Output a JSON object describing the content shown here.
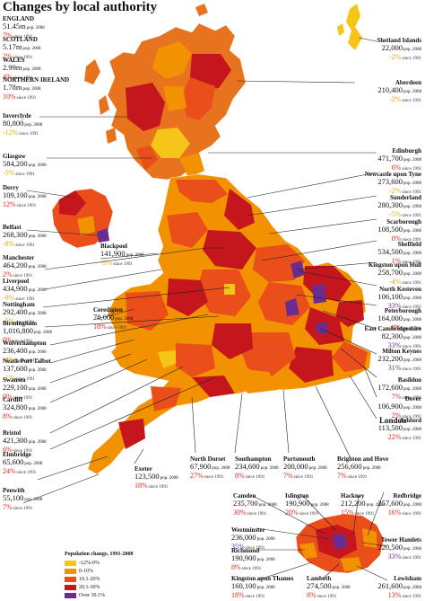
{
  "title": "Changes by local authority",
  "london_title": "London",
  "colors": {
    "decline": "#f5c518",
    "g0": "#f39200",
    "g1": "#e94e1b",
    "g2": "#c4161c",
    "g3": "#6a2c8e",
    "land_base": "#e8731f",
    "highlight_text": "#e1251b"
  },
  "legend": {
    "title": "Population change, 1991-2008",
    "items": [
      {
        "label": "-12%-0%",
        "color": "#f5c518"
      },
      {
        "label": "0-10%",
        "color": "#f39200"
      },
      {
        "label": "10.1-20%",
        "color": "#e94e1b"
      },
      {
        "label": "20.1-30%",
        "color": "#c4161c"
      },
      {
        "label": "Over 30.1%",
        "color": "#6a2c8e"
      }
    ]
  },
  "units": {
    "pop": "pop. 2008",
    "since": "since 1991"
  },
  "nations": [
    {
      "name": "ENGLAND",
      "pop": "51.45m",
      "change": "7%"
    },
    {
      "name": "SCOTLAND",
      "pop": "5.17m",
      "change": "2%"
    },
    {
      "name": "WALES",
      "pop": "2.99m",
      "change": "4%"
    },
    {
      "name": "NORTHERN IRELAND",
      "pop": "1.78m",
      "change": "10%"
    }
  ],
  "areas": [
    {
      "name": "Inverclyde",
      "pop": "80,800",
      "change": "-12%"
    },
    {
      "name": "Glasgow",
      "pop": "584,200",
      "change": "-5%"
    },
    {
      "name": "Derry",
      "pop": "109,100",
      "change": "12%"
    },
    {
      "name": "Belfast",
      "pop": "268,300",
      "change": "-8%"
    },
    {
      "name": "Manchester",
      "pop": "464,200",
      "change": "2%"
    },
    {
      "name": "Liverpool",
      "pop": "434,900",
      "change": "-9%"
    },
    {
      "name": "Nottingham",
      "pop": "292,400",
      "change": "-5%"
    },
    {
      "name": "Birmingham",
      "pop": "1,016,800",
      "change": "0%"
    },
    {
      "name": "Wolverhampton",
      "pop": "236,400",
      "change": "-4%"
    },
    {
      "name": "Neath Port Talbot",
      "pop": "137,600",
      "change": "-1%"
    },
    {
      "name": "Swansea",
      "pop": "229,100",
      "change": "0%"
    },
    {
      "name": "Cardiff",
      "pop": "324,800",
      "change": "8%"
    },
    {
      "name": "Bristol",
      "pop": "421,300",
      "change": "6%"
    },
    {
      "name": "Blackpool",
      "pop": "141,900",
      "change": "-5%"
    },
    {
      "name": "Ceredigion",
      "pop": "78,000",
      "change": "18%"
    },
    {
      "name": "Shetland Islands",
      "pop": "22,000",
      "change": "-2%"
    },
    {
      "name": "Aberdeen",
      "pop": "210,400",
      "change": "-2%"
    },
    {
      "name": "Edinburgh",
      "pop": "471,700",
      "change": "6%"
    },
    {
      "name": "Newcastle upon Tyne",
      "pop": "273,600",
      "change": "-2%"
    },
    {
      "name": "Sunderland",
      "pop": "280,300",
      "change": "-5%"
    },
    {
      "name": "Scarborough",
      "pop": "108,500",
      "change": "0%"
    },
    {
      "name": "Sheffield",
      "pop": "534,500",
      "change": "1%"
    },
    {
      "name": "Kingston upon Hull",
      "pop": "258,700",
      "change": "-4%"
    },
    {
      "name": "North Kesteven",
      "pop": "106,100",
      "change": "33%"
    },
    {
      "name": "Peterborough",
      "pop": "164,000",
      "change": "8%"
    },
    {
      "name": "East Cambridgeshire",
      "pop": "82,300",
      "change": "33%"
    },
    {
      "name": "Milton Keynes",
      "pop": "232,200",
      "change": "31%"
    },
    {
      "name": "Basildon",
      "pop": "172,600",
      "change": "7%"
    },
    {
      "name": "Dover",
      "pop": "106,900",
      "change": "2%"
    },
    {
      "name": "Ashford",
      "pop": "113,500",
      "change": "22%"
    },
    {
      "name": "Brighton and Hove",
      "pop": "256,600",
      "change": "7%"
    },
    {
      "name": "Portsmouth",
      "pop": "200,000",
      "change": "7%"
    },
    {
      "name": "Southampton",
      "pop": "234,600",
      "change": "8%"
    },
    {
      "name": "North Dorset",
      "pop": "67,900",
      "change": "27%"
    },
    {
      "name": "Exeter",
      "pop": "123,500",
      "change": "18%"
    },
    {
      "name": "Penwith",
      "pop": "55,100",
      "change": "7%"
    },
    {
      "name": "Elmbridge",
      "pop": "65,600",
      "change": "24%"
    }
  ],
  "london": [
    {
      "name": "Camden",
      "pop": "235,700",
      "change": "30%"
    },
    {
      "name": "Islington",
      "pop": "190,900",
      "change": "20%"
    },
    {
      "name": "Hackney",
      "pop": "212,200",
      "change": "15%"
    },
    {
      "name": "Redbridge",
      "pop": "257,600",
      "change": "16%"
    },
    {
      "name": "Westminster",
      "pop": "236,000",
      "change": "35%"
    },
    {
      "name": "Richmond",
      "pop": "190,900",
      "change": "8%"
    },
    {
      "name": "Tower Hamlets",
      "pop": "220,500",
      "change": "33%"
    },
    {
      "name": "Kingston upon Thames",
      "pop": "160,100",
      "change": "18%"
    },
    {
      "name": "Lambeth",
      "pop": "274,500",
      "change": "8%"
    },
    {
      "name": "Lewisham",
      "pop": "261,600",
      "change": "13%"
    }
  ]
}
